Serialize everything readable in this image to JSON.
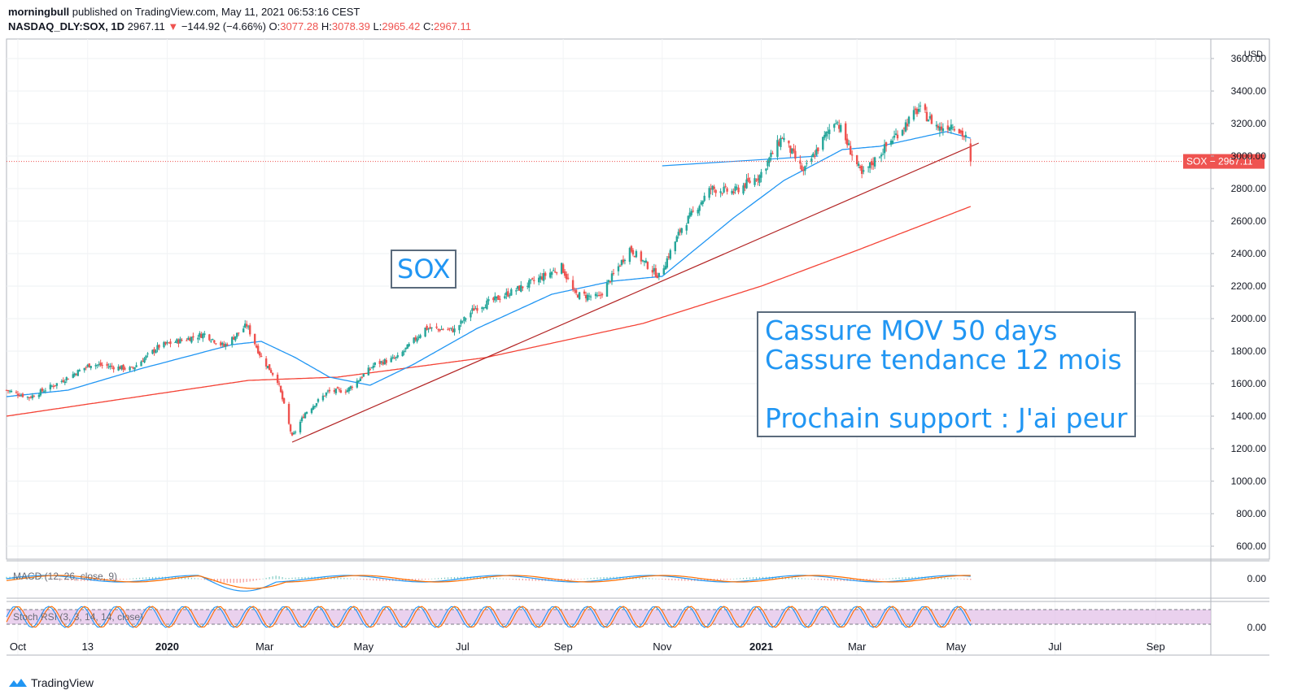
{
  "header": {
    "author": "morningbull",
    "published": "published on TradingView.com, May 11, 2021 06:53:16 CEST",
    "symbol": "NASDAQ_DLY:SOX, 1D",
    "last": "2967.11",
    "change": "−144.92 (−4.66%)",
    "open_label": "O:",
    "open": "3077.28",
    "high_label": "H:",
    "high": "3078.39",
    "low_label": "L:",
    "low": "2965.42",
    "close_label": "C:",
    "close": "2967.11"
  },
  "annotations": {
    "sox_label": "SOX",
    "note_line1": "Cassure MOV 50 days",
    "note_line2": "Cassure tendance 12 mois",
    "note_line3": "",
    "note_line4": "Prochain support : J'ai peur"
  },
  "indicators": {
    "macd_label": "MACD (12, 26, close, 9)",
    "macd_tick": "0.00",
    "stoch_label": "Stoch RSI (3, 3, 14, 14, close)",
    "stoch_tick": "0.00"
  },
  "price_tag": "SOX − 2967.11",
  "currency": "USD",
  "footer": {
    "brand": "TradingView"
  },
  "colors": {
    "up": "#26a69a",
    "down": "#ef5350",
    "ma50": "#2196f3",
    "ma200": "#f44336",
    "trend": "#b22222",
    "annotation_text": "#2196f3",
    "stoch_bg": "#e1bee7"
  },
  "chart_data": {
    "type": "candlestick",
    "title": "NASDAQ_DLY:SOX, 1D",
    "y_ticks": [
      600,
      800,
      1000,
      1200,
      1400,
      1600,
      1800,
      2000,
      2200,
      2400,
      2600,
      2800,
      3000,
      3200,
      3400,
      3600
    ],
    "y_tick_labels": [
      "600.00",
      "800.00",
      "1000.00",
      "1200.00",
      "1400.00",
      "1600.00",
      "1800.00",
      "2000.00",
      "2200.00",
      "2400.00",
      "2600.00",
      "2800.00",
      "3000.00",
      "3200.00",
      "3400.00",
      "3600.00"
    ],
    "x_tick_labels": [
      "Oct",
      "13",
      "2020",
      "Mar",
      "May",
      "Jul",
      "Sep",
      "Nov",
      "2021",
      "Mar",
      "May",
      "Jul",
      "Sep"
    ],
    "x_tick_dates": [
      "2019-10-01",
      "2019-11-13",
      "2020-01-01",
      "2020-03-01",
      "2020-05-01",
      "2020-07-01",
      "2020-09-01",
      "2020-11-01",
      "2021-01-01",
      "2021-03-01",
      "2021-05-01",
      "2021-07-01",
      "2021-09-01"
    ],
    "ylim": [
      520,
      3720
    ],
    "xlim": [
      "2019-09-24",
      "2021-10-05"
    ],
    "close_anchors": [
      {
        "date": "2019-09-24",
        "close": 1560
      },
      {
        "date": "2019-10-08",
        "close": 1515
      },
      {
        "date": "2019-10-25",
        "close": 1600
      },
      {
        "date": "2019-11-15",
        "close": 1720
      },
      {
        "date": "2019-12-10",
        "close": 1690
      },
      {
        "date": "2019-12-27",
        "close": 1830
      },
      {
        "date": "2020-01-24",
        "close": 1905
      },
      {
        "date": "2020-02-05",
        "close": 1830
      },
      {
        "date": "2020-02-19",
        "close": 1960
      },
      {
        "date": "2020-02-28",
        "close": 1760
      },
      {
        "date": "2020-03-09",
        "close": 1620
      },
      {
        "date": "2020-03-18",
        "close": 1270
      },
      {
        "date": "2020-03-26",
        "close": 1420
      },
      {
        "date": "2020-04-09",
        "close": 1550
      },
      {
        "date": "2020-04-21",
        "close": 1560
      },
      {
        "date": "2020-05-08",
        "close": 1720
      },
      {
        "date": "2020-05-22",
        "close": 1760
      },
      {
        "date": "2020-06-08",
        "close": 1940
      },
      {
        "date": "2020-06-26",
        "close": 1930
      },
      {
        "date": "2020-07-08",
        "close": 2060
      },
      {
        "date": "2020-07-24",
        "close": 2130
      },
      {
        "date": "2020-08-14",
        "close": 2230
      },
      {
        "date": "2020-08-31",
        "close": 2320
      },
      {
        "date": "2020-09-08",
        "close": 2150
      },
      {
        "date": "2020-09-23",
        "close": 2130
      },
      {
        "date": "2020-10-12",
        "close": 2430
      },
      {
        "date": "2020-10-30",
        "close": 2260
      },
      {
        "date": "2020-11-13",
        "close": 2560
      },
      {
        "date": "2020-12-01",
        "close": 2800
      },
      {
        "date": "2020-12-15",
        "close": 2780
      },
      {
        "date": "2020-12-31",
        "close": 2880
      },
      {
        "date": "2021-01-14",
        "close": 3120
      },
      {
        "date": "2021-01-27",
        "close": 2900
      },
      {
        "date": "2021-02-16",
        "close": 3230
      },
      {
        "date": "2021-03-04",
        "close": 2880
      },
      {
        "date": "2021-03-19",
        "close": 3060
      },
      {
        "date": "2021-04-08",
        "close": 3290
      },
      {
        "date": "2021-04-21",
        "close": 3170
      },
      {
        "date": "2021-04-29",
        "close": 3200
      },
      {
        "date": "2021-05-07",
        "close": 3110
      },
      {
        "date": "2021-05-10",
        "close": 2967.11
      }
    ],
    "ma50_anchors": [
      {
        "date": "2019-09-24",
        "value": 1520
      },
      {
        "date": "2019-11-01",
        "value": 1560
      },
      {
        "date": "2019-12-15",
        "value": 1690
      },
      {
        "date": "2020-02-10",
        "value": 1840
      },
      {
        "date": "2020-02-28",
        "value": 1860
      },
      {
        "date": "2020-03-20",
        "value": 1760
      },
      {
        "date": "2020-04-10",
        "value": 1640
      },
      {
        "date": "2020-05-05",
        "value": 1590
      },
      {
        "date": "2020-06-01",
        "value": 1720
      },
      {
        "date": "2020-07-10",
        "value": 1940
      },
      {
        "date": "2020-08-25",
        "value": 2150
      },
      {
        "date": "2020-10-01",
        "value": 2230
      },
      {
        "date": "2020-11-01",
        "value": 2260
      },
      {
        "date": "2020-12-15",
        "value": 2620
      },
      {
        "date": "2021-01-15",
        "value": 2850
      },
      {
        "date": "2021-02-20",
        "value": 3040
      },
      {
        "date": "2021-03-15",
        "value": 3060
      },
      {
        "date": "2021-04-25",
        "value": 3150
      },
      {
        "date": "2021-05-10",
        "value": 3110
      }
    ],
    "ma200_anchors": [
      {
        "date": "2019-09-24",
        "value": 1400
      },
      {
        "date": "2020-02-20",
        "value": 1620
      },
      {
        "date": "2020-04-15",
        "value": 1640
      },
      {
        "date": "2020-07-15",
        "value": 1760
      },
      {
        "date": "2020-10-20",
        "value": 1970
      },
      {
        "date": "2021-01-01",
        "value": 2200
      },
      {
        "date": "2021-03-01",
        "value": 2420
      },
      {
        "date": "2021-05-10",
        "value": 2690
      }
    ],
    "trendlines": [
      {
        "name": "",
        "from": {
          "date": "2020-03-18",
          "value": 1240
        },
        "to": {
          "date": "2021-05-15",
          "value": 3080
        }
      },
      {
        "name": "",
        "from": {
          "date": "2020-11-01",
          "value": 2940
        },
        "to": {
          "date": "2021-02-05",
          "value": 3000
        }
      }
    ],
    "last_price": 2967.11,
    "grid": true,
    "legend": "none"
  }
}
